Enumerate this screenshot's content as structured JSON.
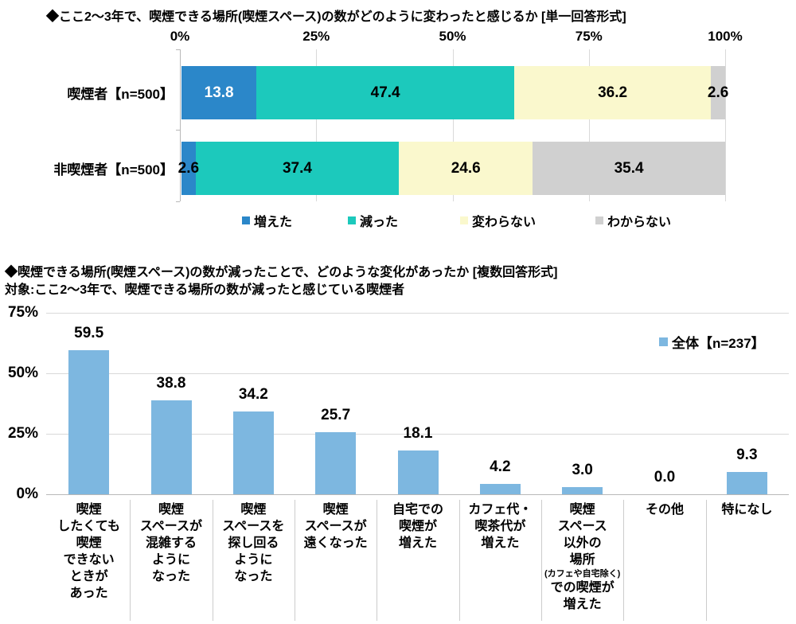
{
  "chart_data": [
    {
      "type": "bar",
      "subtype": "horizontal-stacked",
      "title": "◆ここ2〜3年で、喫煙できる場所(喫煙スペース)の数がどのように変わったと感じるか [単一回答形式]",
      "x_tick_labels": [
        "0%",
        "25%",
        "50%",
        "75%",
        "100%"
      ],
      "xlim": [
        0,
        100
      ],
      "grid": "vertical",
      "legend_position": "bottom",
      "categories": [
        "喫煙者【n=500】",
        "非喫煙者【n=500】"
      ],
      "series": [
        {
          "name": "増えた",
          "color": "#2b87c9",
          "values": [
            13.8,
            2.6
          ]
        },
        {
          "name": "減った",
          "color": "#1cc9bc",
          "values": [
            47.4,
            37.4
          ]
        },
        {
          "name": "変わらない",
          "color": "#faf8cd",
          "values": [
            36.2,
            24.6
          ]
        },
        {
          "name": "わからない",
          "color": "#d0d0d0",
          "values": [
            2.6,
            35.4
          ]
        }
      ]
    },
    {
      "type": "bar",
      "subtype": "vertical",
      "title": "◆喫煙できる場所(喫煙スペース)の数が減ったことで、どのような変化があったか [複数回答形式]",
      "subtitle": "対象:ここ2〜3年で、喫煙できる場所の数が減ったと感じている喫煙者",
      "legend_label": "全体【n=237】",
      "legend_position": "right",
      "bar_color": "#7db7e0",
      "y_tick_labels": [
        "0%",
        "25%",
        "50%",
        "75%"
      ],
      "ylim": [
        0,
        75
      ],
      "grid": "horizontal",
      "values": [
        59.5,
        38.8,
        34.2,
        25.7,
        18.1,
        4.2,
        3.0,
        0.0,
        9.3
      ],
      "categories": [
        [
          "喫煙",
          "したくても",
          "喫煙",
          "できない",
          "ときが",
          "あった"
        ],
        [
          "喫煙",
          "スペースが",
          "混雑する",
          "ように",
          "なった"
        ],
        [
          "喫煙",
          "スペースを",
          "探し回る",
          "ように",
          "なった"
        ],
        [
          "喫煙",
          "スペースが",
          "遠くなった"
        ],
        [
          "自宅での",
          "喫煙が",
          "増えた"
        ],
        [
          "カフェ代・",
          "喫茶代が",
          "増えた"
        ],
        [
          "喫煙",
          "スペース",
          "以外の",
          "場所",
          "(カフェや自宅除く)",
          "での喫煙が",
          "増えた"
        ],
        [
          "その他"
        ],
        [
          "特になし"
        ]
      ]
    }
  ]
}
